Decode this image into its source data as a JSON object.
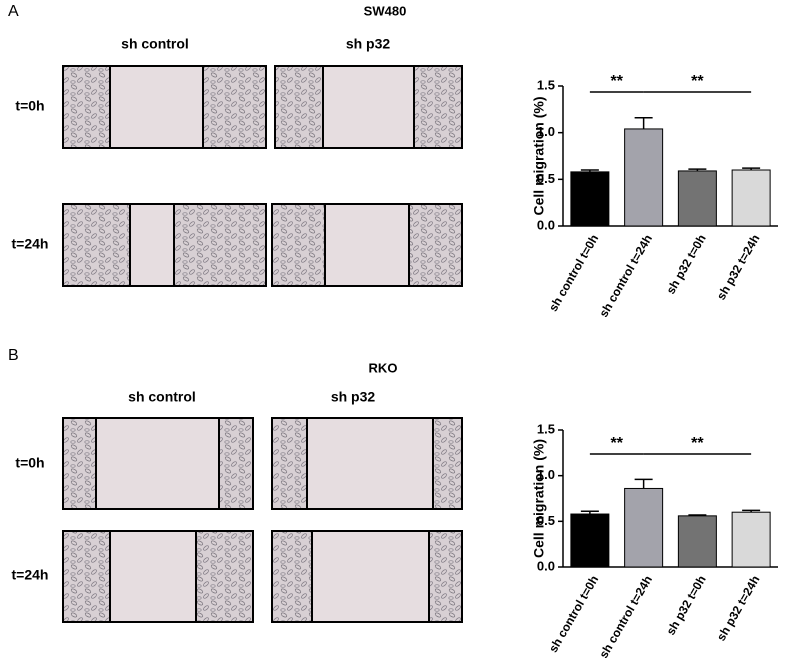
{
  "panels": [
    {
      "label": "A",
      "title": "SW480",
      "columns": [
        "sh control",
        "sh p32"
      ],
      "rows": [
        "t=0h",
        "t=24h"
      ]
    },
    {
      "label": "B",
      "title": "RKO",
      "columns": [
        "sh control",
        "sh p32"
      ],
      "rows": [
        "t=0h",
        "t=24h"
      ]
    }
  ],
  "chart_data": [
    {
      "type": "bar",
      "ylabel": "Cell migration (%)",
      "categories": [
        "sh control t=0h",
        "sh control  t=24h",
        "sh p32 t=0h",
        "sh p32  t=24h"
      ],
      "values": [
        0.58,
        1.04,
        0.59,
        0.6
      ],
      "errors": [
        0.02,
        0.12,
        0.02,
        0.02
      ],
      "colors": [
        "#000000",
        "#a3a3ab",
        "#737373",
        "#d9d9d9"
      ],
      "ylim": [
        0,
        1.5
      ],
      "yticks": [
        {
          "value": 0,
          "label": "0.0"
        },
        0.5,
        {
          "value": 1,
          "label": "1.0"
        },
        1.5
      ],
      "annotations": [
        {
          "text": "**"
        },
        {
          "text": "**"
        }
      ]
    },
    {
      "type": "bar",
      "ylabel": "Cell migration (%)",
      "categories": [
        "sh control t=0h",
        "sh control t=24h",
        "sh p32 t=0h",
        "sh p32 t=24h"
      ],
      "values": [
        0.58,
        0.86,
        0.56,
        0.6
      ],
      "errors": [
        0.03,
        0.1,
        0.01,
        0.02
      ],
      "colors": [
        "#000000",
        "#a3a3ab",
        "#737373",
        "#d9d9d9"
      ],
      "ylim": [
        0,
        1.5
      ],
      "yticks": [
        {
          "value": 0,
          "label": "0.0"
        },
        0.5,
        {
          "value": 1,
          "label": "1.0"
        },
        1.5
      ],
      "annotations": [
        {
          "text": "**"
        },
        {
          "text": "**"
        }
      ]
    }
  ]
}
